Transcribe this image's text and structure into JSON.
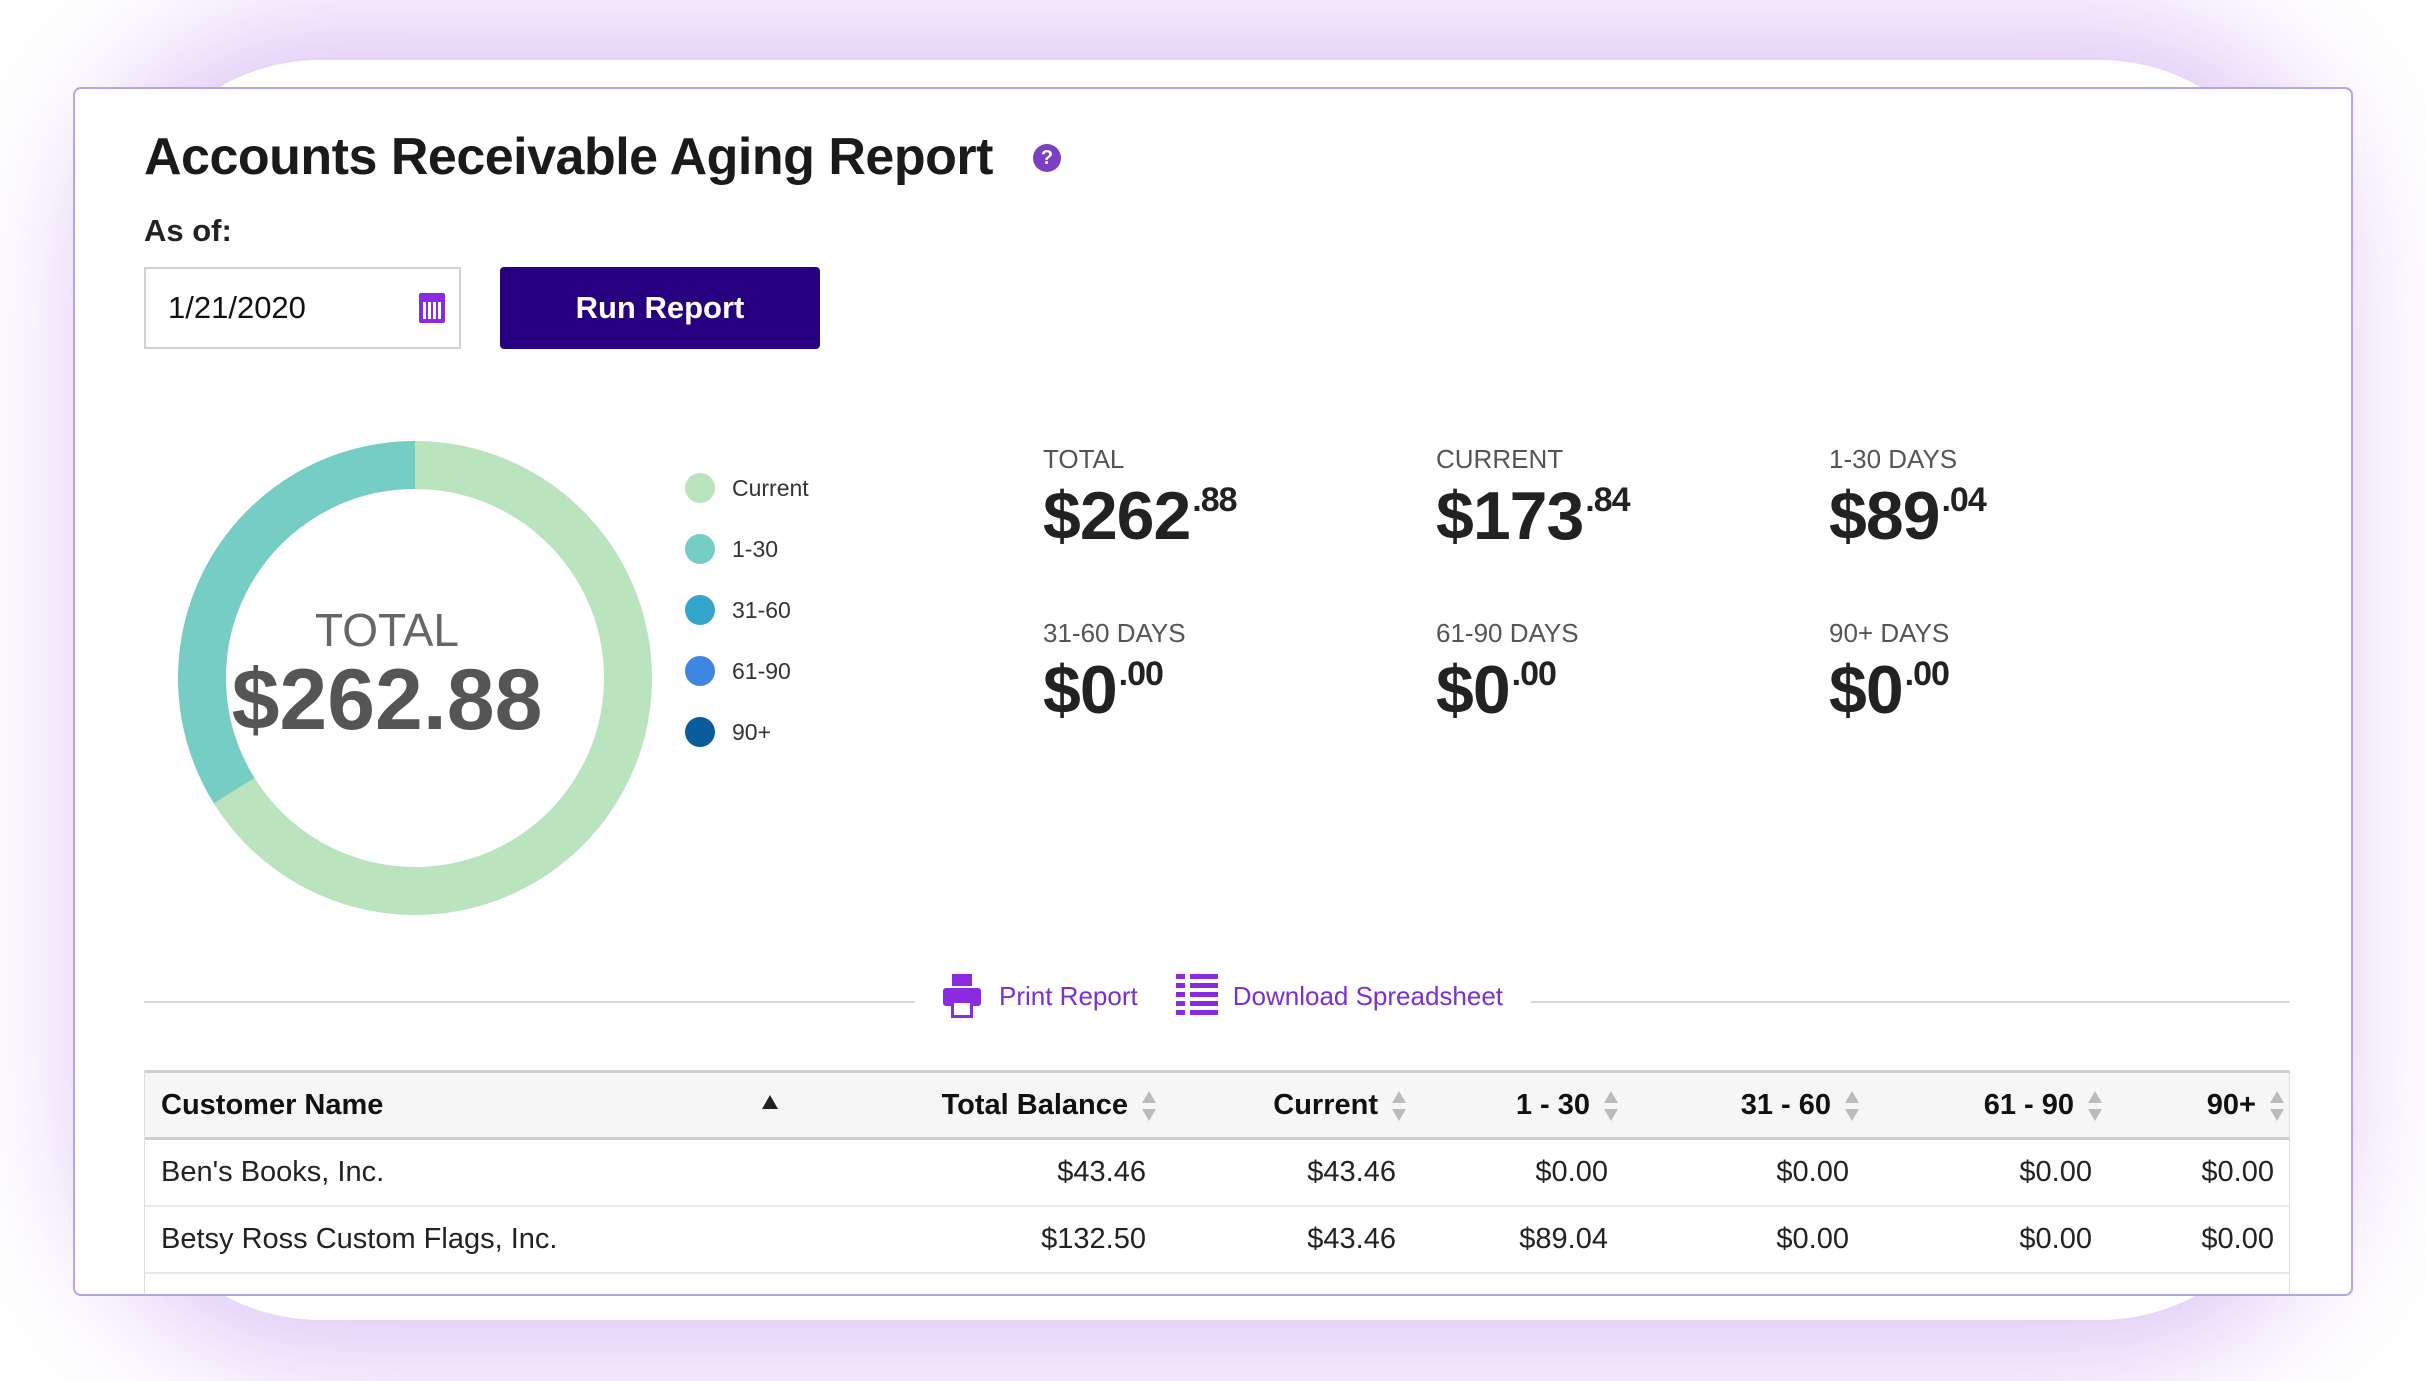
{
  "header": {
    "title": "Accounts Receivable Aging Report",
    "help_icon": "question-circle-icon"
  },
  "form": {
    "as_of_label": "As of:",
    "date_value": "1/21/2020",
    "run_label": "Run Report"
  },
  "donut": {
    "center_label": "TOTAL",
    "center_value": "$262.88"
  },
  "chart_data": {
    "type": "pie",
    "categories": [
      "Current",
      "1-30",
      "31-60",
      "61-90",
      "90+"
    ],
    "values": [
      173.84,
      89.04,
      0,
      0,
      0
    ],
    "colors": [
      "#b9e4bd",
      "#76cdc3",
      "#34a5cb",
      "#3f86e0",
      "#0a5c9c"
    ],
    "legend_position": "right"
  },
  "stats": [
    {
      "label": "TOTAL",
      "whole": "$262",
      "cents": ".88"
    },
    {
      "label": "CURRENT",
      "whole": "$173",
      "cents": ".84"
    },
    {
      "label": "1-30 DAYS",
      "whole": "$89",
      "cents": ".04"
    },
    {
      "label": "31-60 DAYS",
      "whole": "$0",
      "cents": ".00"
    },
    {
      "label": "61-90 DAYS",
      "whole": "$0",
      "cents": ".00"
    },
    {
      "label": "90+ DAYS",
      "whole": "$0",
      "cents": ".00"
    }
  ],
  "actions": {
    "print_label": "Print Report",
    "download_label": "Download Spreadsheet"
  },
  "table": {
    "columns": [
      "Customer Name",
      "Total Balance",
      "Current",
      "1 - 30",
      "31 - 60",
      "61 - 90",
      "90+"
    ],
    "rows": [
      [
        "Ben's Books, Inc.",
        "$43.46",
        "$43.46",
        "$0.00",
        "$0.00",
        "$0.00",
        "$0.00"
      ],
      [
        "Betsy Ross Custom Flags, Inc.",
        "$132.50",
        "$43.46",
        "$89.04",
        "$0.00",
        "$0.00",
        "$0.00"
      ]
    ]
  },
  "colors": {
    "accent": "#27007f",
    "link": "#7b2fd6",
    "border": "#b9a3ee"
  }
}
